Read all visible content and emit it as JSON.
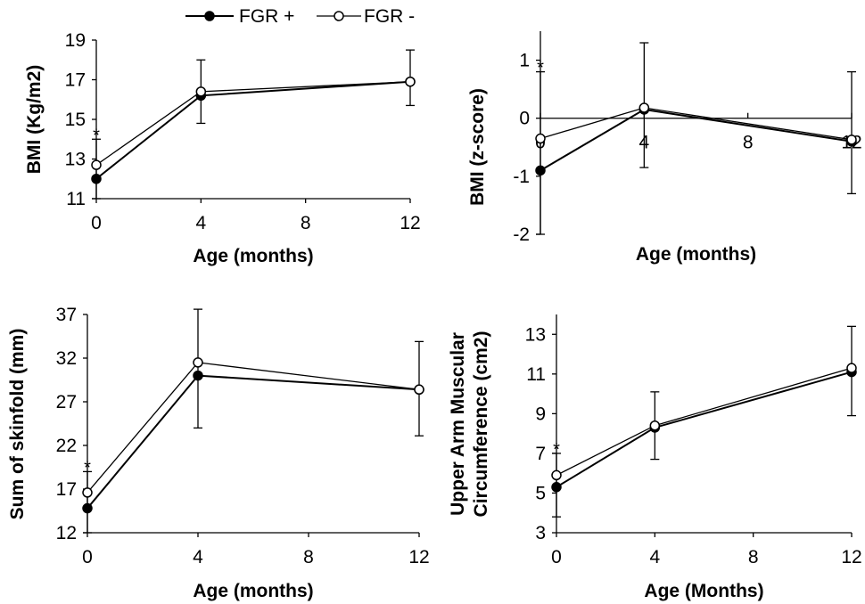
{
  "legend": [
    {
      "label": "FGR +",
      "marker": "filled",
      "color": "#000000"
    },
    {
      "label": "FGR -",
      "marker": "open",
      "color": "#000000"
    }
  ],
  "chart_data": [
    {
      "type": "line",
      "title": "",
      "xlabel": "Age (months)",
      "ylabel": "BMI (Kg/m2)",
      "x": [
        0,
        4,
        12
      ],
      "xticks": [
        0,
        4,
        8,
        12
      ],
      "xlim": [
        0,
        12
      ],
      "ylim": [
        11,
        19
      ],
      "yticks": [
        11,
        13,
        15,
        17,
        19
      ],
      "significance_marks": [
        {
          "x": 0,
          "text": "*"
        }
      ],
      "series": [
        {
          "name": "FGR +",
          "values": [
            12.0,
            16.2,
            16.9
          ],
          "error_bar_top": [
            14.0,
            18.0,
            18.5
          ],
          "error_bar_bottom": [
            11.0,
            14.8,
            15.7
          ]
        },
        {
          "name": "FGR -",
          "values": [
            12.7,
            16.4,
            16.9
          ]
        }
      ]
    },
    {
      "type": "line",
      "title": "",
      "xlabel": "Age (months)",
      "ylabel": "BMI (z-score)",
      "x": [
        0,
        4,
        12
      ],
      "xticks": [
        0,
        4,
        8,
        12
      ],
      "xlim": [
        0,
        12
      ],
      "ylim": [
        -2,
        1.5
      ],
      "yticks": [
        -2,
        -1,
        0,
        1
      ],
      "significance_marks": [
        {
          "x": 0,
          "text": "*"
        }
      ],
      "series": [
        {
          "name": "FGR +",
          "values": [
            -0.9,
            0.15,
            -0.4
          ],
          "error_bar_top": [
            0.8,
            1.3,
            0.8
          ],
          "error_bar_bottom": [
            -2.0,
            -0.85,
            -1.3
          ]
        },
        {
          "name": "FGR -",
          "values": [
            -0.35,
            0.18,
            -0.37
          ]
        }
      ]
    },
    {
      "type": "line",
      "title": "",
      "xlabel": "Age (months)",
      "ylabel": "Sum of skinfold (mm)",
      "x": [
        0,
        4,
        12
      ],
      "xticks": [
        0,
        4,
        8,
        12
      ],
      "xlim": [
        0,
        12
      ],
      "ylim": [
        12,
        37
      ],
      "yticks": [
        12,
        17,
        22,
        27,
        32,
        37
      ],
      "significance_marks": [
        {
          "x": 0,
          "text": "*"
        }
      ],
      "series": [
        {
          "name": "FGR +",
          "values": [
            14.8,
            30.0,
            28.4
          ],
          "error_bar_top": [
            19.0,
            37.6,
            33.9
          ],
          "error_bar_bottom": [
            12.0,
            24.0,
            23.1
          ]
        },
        {
          "name": "FGR -",
          "values": [
            16.6,
            31.5,
            28.4
          ]
        }
      ]
    },
    {
      "type": "line",
      "title": "",
      "xlabel": "Age (Months)",
      "ylabel": "Upper Arm Muscular Circumference (cm2)",
      "ylabel_lines": [
        "Upper Arm Muscular",
        "Circumference (cm2)"
      ],
      "x": [
        0,
        4,
        12
      ],
      "xticks": [
        0,
        4,
        8,
        12
      ],
      "xlim": [
        0,
        12
      ],
      "ylim": [
        3,
        14
      ],
      "yticks": [
        3,
        5,
        7,
        9,
        11,
        13
      ],
      "significance_marks": [
        {
          "x": 0,
          "text": "*"
        }
      ],
      "series": [
        {
          "name": "FGR +",
          "values": [
            5.3,
            8.3,
            11.1
          ],
          "error_bar_top": [
            7.0,
            10.1,
            13.4
          ],
          "error_bar_bottom": [
            3.8,
            6.7,
            8.9
          ]
        },
        {
          "name": "FGR -",
          "values": [
            5.9,
            8.4,
            11.3
          ]
        }
      ]
    }
  ]
}
